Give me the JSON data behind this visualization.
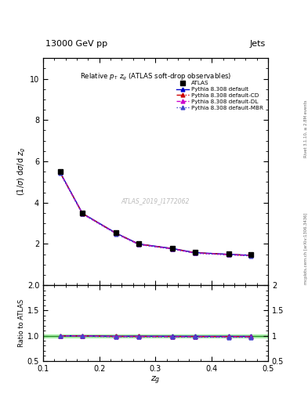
{
  "title_top": "13000 GeV pp",
  "title_top_right": "Jets",
  "plot_title": "Relative $p_{\\mathrm{T}}$ $z_g$ (ATLAS soft-drop observables)",
  "ylabel_main": "(1/$\\sigma$) d$\\sigma$/d $z_g$",
  "ylabel_ratio": "Ratio to ATLAS",
  "xlabel": "$z_g$",
  "rivet_label": "Rivet 3.1.10, ≥ 2.8M events",
  "mcplots_label": "mcplots.cern.ch [arXiv:1306.3436]",
  "watermark": "ATLAS_2019_I1772062",
  "xdata": [
    0.13,
    0.17,
    0.23,
    0.27,
    0.33,
    0.37,
    0.43,
    0.47
  ],
  "atlas_y": [
    5.5,
    3.5,
    2.55,
    2.02,
    1.8,
    1.6,
    1.52,
    1.47
  ],
  "pythia_default_y": [
    5.48,
    3.48,
    2.52,
    2.0,
    1.78,
    1.58,
    1.5,
    1.45
  ],
  "pythia_cd_y": [
    5.47,
    3.47,
    2.51,
    1.99,
    1.77,
    1.57,
    1.49,
    1.44
  ],
  "pythia_dl_y": [
    5.46,
    3.46,
    2.5,
    1.98,
    1.76,
    1.56,
    1.48,
    1.43
  ],
  "pythia_mbr_y": [
    5.45,
    3.45,
    2.49,
    1.97,
    1.75,
    1.55,
    1.47,
    1.42
  ],
  "ratio_default": [
    0.999,
    0.999,
    0.99,
    0.991,
    0.99,
    0.989,
    0.988,
    0.987
  ],
  "ratio_cd": [
    0.997,
    0.995,
    0.986,
    0.986,
    0.984,
    0.983,
    0.982,
    0.981
  ],
  "ratio_dl": [
    0.995,
    0.993,
    0.982,
    0.982,
    0.98,
    0.977,
    0.975,
    0.974
  ],
  "ratio_mbr": [
    0.992,
    0.989,
    0.978,
    0.977,
    0.974,
    0.971,
    0.969,
    0.968
  ],
  "color_default": "#0000cc",
  "color_cd": "#cc0000",
  "color_dl": "#cc00cc",
  "color_mbr": "#4444cc",
  "xlim": [
    0.1,
    0.5
  ],
  "ylim_main": [
    0,
    11
  ],
  "ylim_ratio": [
    0.5,
    2.0
  ],
  "yticks_main": [
    2,
    4,
    6,
    8,
    10
  ],
  "yticks_ratio": [
    0.5,
    1.0,
    1.5,
    2.0
  ],
  "xticks": [
    0.1,
    0.2,
    0.3,
    0.4,
    0.5
  ],
  "background_color": "#ffffff"
}
